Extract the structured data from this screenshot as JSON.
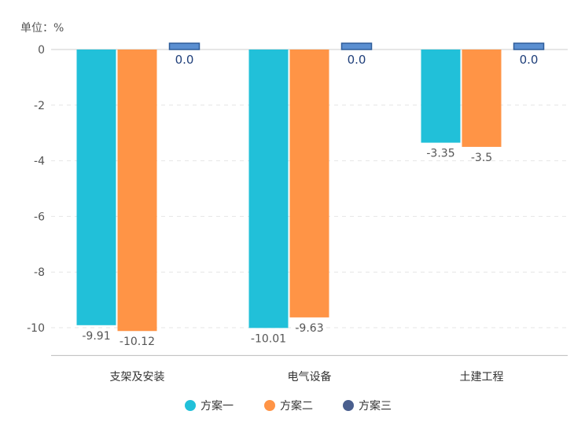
{
  "chart_data": {
    "type": "bar",
    "unit_label": "单位：%",
    "categories": [
      "支架及安装",
      "电气设备",
      "土建工程"
    ],
    "series": [
      {
        "name": "方案一",
        "color": "#21c0d9",
        "values": [
          -9.91,
          -10.01,
          -3.35
        ],
        "labels": [
          "-9.91",
          "-10.01",
          "-3.35"
        ]
      },
      {
        "name": "方案二",
        "color": "#ff9446",
        "values": [
          -10.12,
          -9.63,
          -3.5
        ],
        "labels": [
          "-10.12",
          "-9.63",
          "-3.5"
        ]
      },
      {
        "name": "方案三",
        "color": "#5b8fd1",
        "values": [
          0.0,
          0.0,
          0.0
        ],
        "labels": [
          "0.0",
          "0.0",
          "0.0"
        ]
      }
    ],
    "yticks": [
      "0",
      "-2",
      "-4",
      "-6",
      "-8",
      "-10"
    ],
    "ylim": [
      -11,
      0
    ],
    "grid": true,
    "legend": "bottom-center"
  }
}
